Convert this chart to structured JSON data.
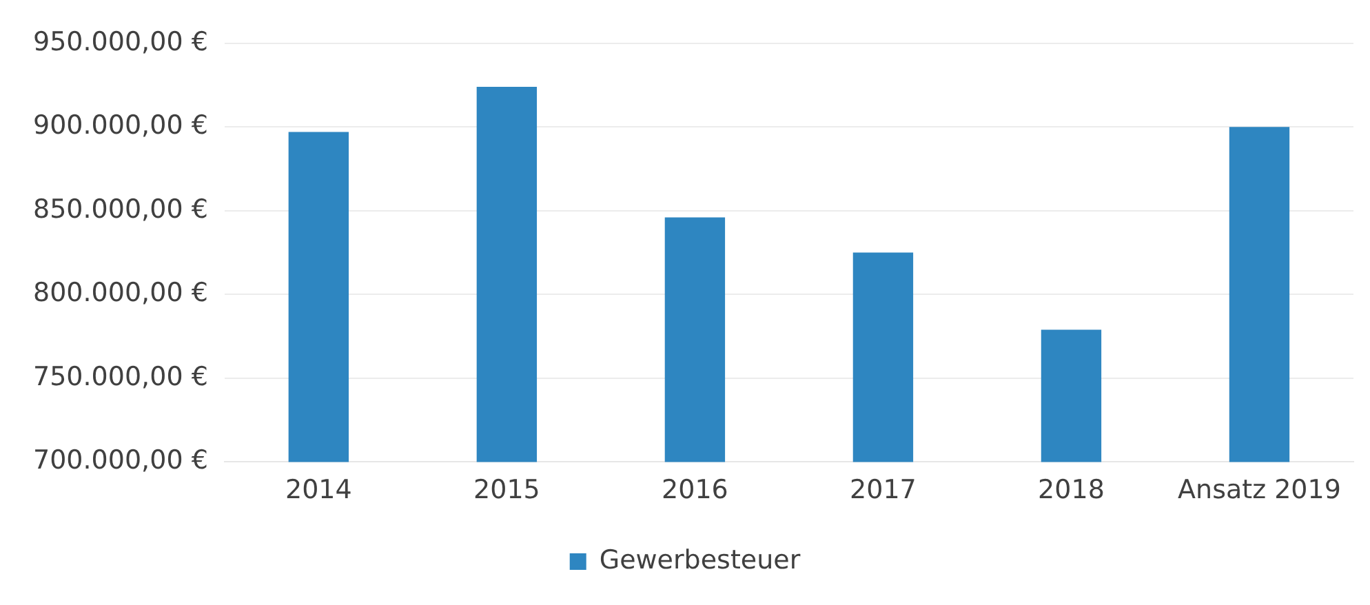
{
  "chart_data": {
    "type": "bar",
    "categories": [
      "2014",
      "2015",
      "2016",
      "2017",
      "2018",
      "Ansatz 2019"
    ],
    "series": [
      {
        "name": "Gewerbesteuer",
        "color": "#2e86c1",
        "values": [
          897000,
          924000,
          846000,
          825000,
          779000,
          900000
        ]
      }
    ],
    "ylim": [
      700000,
      950000
    ],
    "yticks": [
      {
        "value": 700000,
        "label": "700.000,00 €"
      },
      {
        "value": 750000,
        "label": "750.000,00 €"
      },
      {
        "value": 800000,
        "label": "800.000,00 €"
      },
      {
        "value": 850000,
        "label": "850.000,00 €"
      },
      {
        "value": 900000,
        "label": "900.000,00 €"
      },
      {
        "value": 950000,
        "label": "950.000,00 €"
      }
    ],
    "grid": "y",
    "legend": "bottom"
  }
}
